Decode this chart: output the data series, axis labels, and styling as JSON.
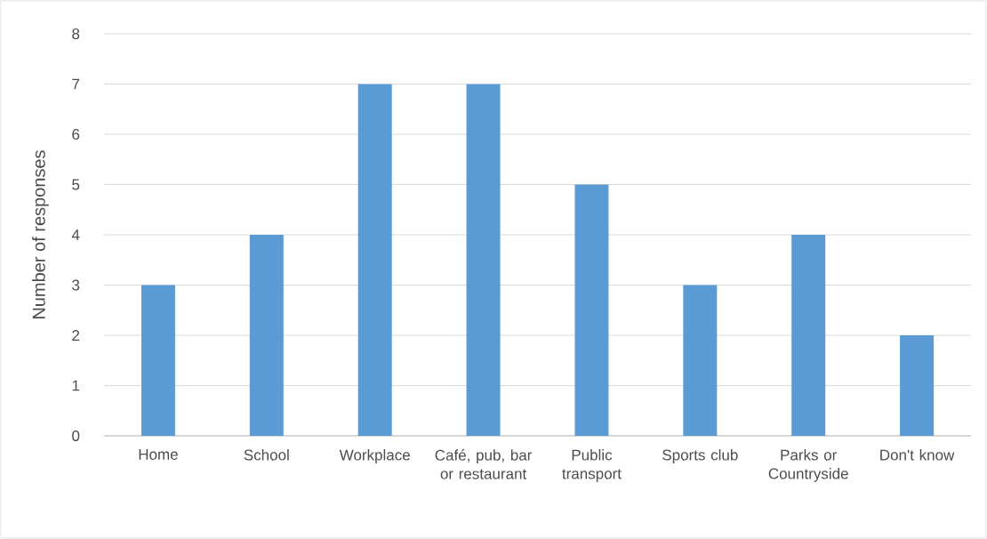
{
  "chart_data": {
    "type": "bar",
    "ylabel": "Number of responses",
    "categories": [
      "Home",
      "School",
      "Workplace",
      "Café, pub, bar or restaurant",
      "Public transport",
      "Sports club",
      "Parks or Countryside",
      "Don't know"
    ],
    "values": [
      3,
      4,
      7,
      7,
      5,
      3,
      4,
      2
    ],
    "color": "#5b9bd5",
    "ylim": [
      0,
      8
    ],
    "yticks": [
      0,
      1,
      2,
      3,
      4,
      5,
      6,
      7,
      8
    ],
    "grid": "y"
  }
}
